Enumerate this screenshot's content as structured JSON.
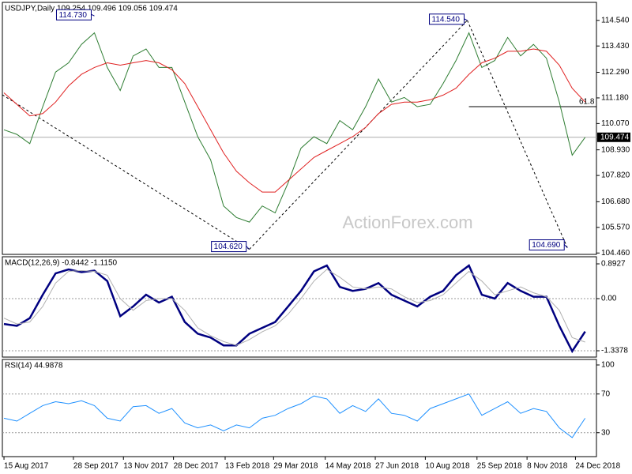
{
  "watermark": "ActionForex.com",
  "chart_data": [
    {
      "type": "line",
      "title": "USDJPY,Daily  109.254 109.496 109.056 109.474",
      "xlim": [
        -1,
        367
      ],
      "ylim": [
        104.4,
        115.32
      ],
      "yticks": [
        {
          "value": 114.54,
          "label": "114.540"
        },
        {
          "value": 113.43,
          "label": "113.430"
        },
        {
          "value": 112.29,
          "label": "112.290"
        },
        {
          "value": 111.18,
          "label": "111.180"
        },
        {
          "value": 110.07,
          "label": "110.070"
        },
        {
          "value": 108.93,
          "label": "108.930"
        },
        {
          "value": 107.82,
          "label": "107.820"
        },
        {
          "value": 106.68,
          "label": "106.680"
        },
        {
          "value": 105.57,
          "label": "105.570"
        },
        {
          "value": 104.46,
          "label": "104.460"
        }
      ],
      "last_price": {
        "value": 109.474,
        "label": "109.474"
      },
      "x": [
        0,
        8,
        16,
        24,
        32,
        40,
        48,
        56,
        64,
        72,
        80,
        88,
        96,
        104,
        112,
        120,
        128,
        136,
        144,
        152,
        160,
        168,
        176,
        184,
        192,
        200,
        208,
        216,
        224,
        232,
        240,
        248,
        256,
        264,
        272,
        280,
        288,
        296,
        304,
        312,
        320,
        328,
        336,
        344,
        352,
        360
      ],
      "series": [
        {
          "name": "USDJPY",
          "color": "#2e7d32",
          "values": [
            109.8,
            109.6,
            109.2,
            110.8,
            112.3,
            112.7,
            113.5,
            114.0,
            112.5,
            111.5,
            113.0,
            113.3,
            112.5,
            112.5,
            111.0,
            109.5,
            108.5,
            106.5,
            106.0,
            105.8,
            106.5,
            106.2,
            107.5,
            109.0,
            109.5,
            109.2,
            110.2,
            109.8,
            110.8,
            112.0,
            111.0,
            111.2,
            110.8,
            110.9,
            111.8,
            112.8,
            114.0,
            112.5,
            112.8,
            113.8,
            113.0,
            113.5,
            112.9,
            111.0,
            108.7,
            109.474
          ]
        },
        {
          "name": "MA",
          "color": "#e02020",
          "values": [
            111.4,
            110.9,
            110.4,
            110.5,
            111.0,
            111.7,
            112.2,
            112.5,
            112.7,
            112.6,
            112.7,
            112.8,
            112.7,
            112.4,
            111.8,
            110.8,
            109.8,
            108.8,
            108.0,
            107.5,
            107.1,
            107.1,
            107.6,
            108.1,
            108.6,
            108.9,
            109.2,
            109.5,
            109.9,
            110.5,
            110.9,
            111.0,
            111.0,
            111.1,
            111.3,
            111.6,
            112.2,
            112.7,
            112.9,
            113.2,
            113.2,
            113.3,
            113.2,
            112.6,
            111.6,
            111.0
          ]
        }
      ],
      "annotations": [
        {
          "x": 56,
          "value": 114.73,
          "label": "114.730"
        },
        {
          "x": 152,
          "value": 104.62,
          "label": "104.620"
        },
        {
          "x": 287,
          "value": 114.54,
          "label": "114.540"
        },
        {
          "x": 349,
          "value": 104.69,
          "label": "104.690"
        }
      ],
      "fib": {
        "x": 288,
        "value": 110.8,
        "label": "61.8"
      }
    },
    {
      "type": "line",
      "title": "MACD(12,26,9) -0.8442 -1.1150",
      "xlim": [
        -1,
        367
      ],
      "ylim": [
        -1.5,
        1.075
      ],
      "yticks": [
        {
          "value": 0.8927,
          "label": "0.8927"
        },
        {
          "value": 0,
          "label": "0.00"
        },
        {
          "value": -1.3378,
          "label": "-1.3378"
        }
      ],
      "x": [
        0,
        8,
        16,
        24,
        32,
        40,
        48,
        56,
        64,
        72,
        80,
        88,
        96,
        104,
        112,
        120,
        128,
        136,
        144,
        152,
        160,
        168,
        176,
        184,
        192,
        200,
        208,
        216,
        224,
        232,
        240,
        248,
        256,
        264,
        272,
        280,
        288,
        296,
        304,
        312,
        320,
        328,
        336,
        344,
        352,
        360
      ],
      "series": [
        {
          "name": "MACD",
          "color": "#000080",
          "values": [
            -0.65,
            -0.7,
            -0.5,
            0.1,
            0.65,
            0.75,
            0.68,
            0.72,
            0.45,
            -0.45,
            -0.2,
            0.1,
            -0.1,
            0.05,
            -0.6,
            -0.9,
            -1.0,
            -1.2,
            -1.2,
            -0.9,
            -0.75,
            -0.6,
            -0.2,
            0.2,
            0.7,
            0.85,
            0.3,
            0.2,
            0.25,
            0.4,
            0.1,
            -0.05,
            -0.2,
            0.05,
            0.2,
            0.6,
            0.85,
            0.1,
            0.0,
            0.4,
            0.2,
            0.05,
            0.05,
            -0.7,
            -1.35,
            -0.8442
          ]
        },
        {
          "name": "Signal",
          "color": "#b0b0b0",
          "values": [
            -0.5,
            -0.65,
            -0.6,
            -0.2,
            0.4,
            0.7,
            0.72,
            0.7,
            0.6,
            0.0,
            -0.3,
            -0.05,
            0.0,
            0.0,
            -0.3,
            -0.75,
            -0.95,
            -1.1,
            -1.2,
            -1.05,
            -0.85,
            -0.7,
            -0.4,
            0.0,
            0.45,
            0.75,
            0.55,
            0.3,
            0.25,
            0.3,
            0.25,
            0.05,
            -0.1,
            -0.05,
            0.1,
            0.4,
            0.7,
            0.45,
            0.1,
            0.2,
            0.3,
            0.15,
            0.05,
            -0.3,
            -1.0,
            -1.115
          ]
        }
      ]
    },
    {
      "type": "line",
      "title": "RSI(14) 44.9878",
      "xlim": [
        -1,
        367
      ],
      "ylim": [
        5.3,
        105.7
      ],
      "yticks": [
        100,
        70,
        30
      ],
      "xticks": [
        {
          "value": 0,
          "label": "15 Aug 2017"
        },
        {
          "value": 43,
          "label": "28 Sep 2017"
        },
        {
          "value": 74,
          "label": "13 Nov 2017"
        },
        {
          "value": 105,
          "label": "28 Dec 2017"
        },
        {
          "value": 137,
          "label": "13 Feb 2018"
        },
        {
          "value": 167,
          "label": "29 Mar 2018"
        },
        {
          "value": 199,
          "label": "14 May 2018"
        },
        {
          "value": 230,
          "label": "27 Jun 2018"
        },
        {
          "value": 261,
          "label": "10 Aug 2018"
        },
        {
          "value": 293,
          "label": "25 Sep 2018"
        },
        {
          "value": 324,
          "label": "8 Nov 2018"
        },
        {
          "value": 354,
          "label": "24 Dec 2018"
        }
      ],
      "x": [
        0,
        8,
        16,
        24,
        32,
        40,
        48,
        56,
        64,
        72,
        80,
        88,
        96,
        104,
        112,
        120,
        128,
        136,
        144,
        152,
        160,
        168,
        176,
        184,
        192,
        200,
        208,
        216,
        224,
        232,
        240,
        248,
        256,
        264,
        272,
        280,
        288,
        296,
        304,
        312,
        320,
        328,
        336,
        344,
        352,
        360
      ],
      "series": [
        {
          "name": "RSI",
          "color": "#1e90ff",
          "values": [
            45,
            42,
            50,
            58,
            62,
            60,
            63,
            58,
            45,
            42,
            57,
            58,
            50,
            55,
            40,
            35,
            38,
            32,
            38,
            35,
            45,
            48,
            55,
            60,
            68,
            65,
            50,
            58,
            52,
            65,
            50,
            48,
            42,
            55,
            60,
            65,
            70,
            48,
            55,
            62,
            50,
            55,
            52,
            35,
            25,
            44.9878
          ]
        }
      ]
    }
  ]
}
